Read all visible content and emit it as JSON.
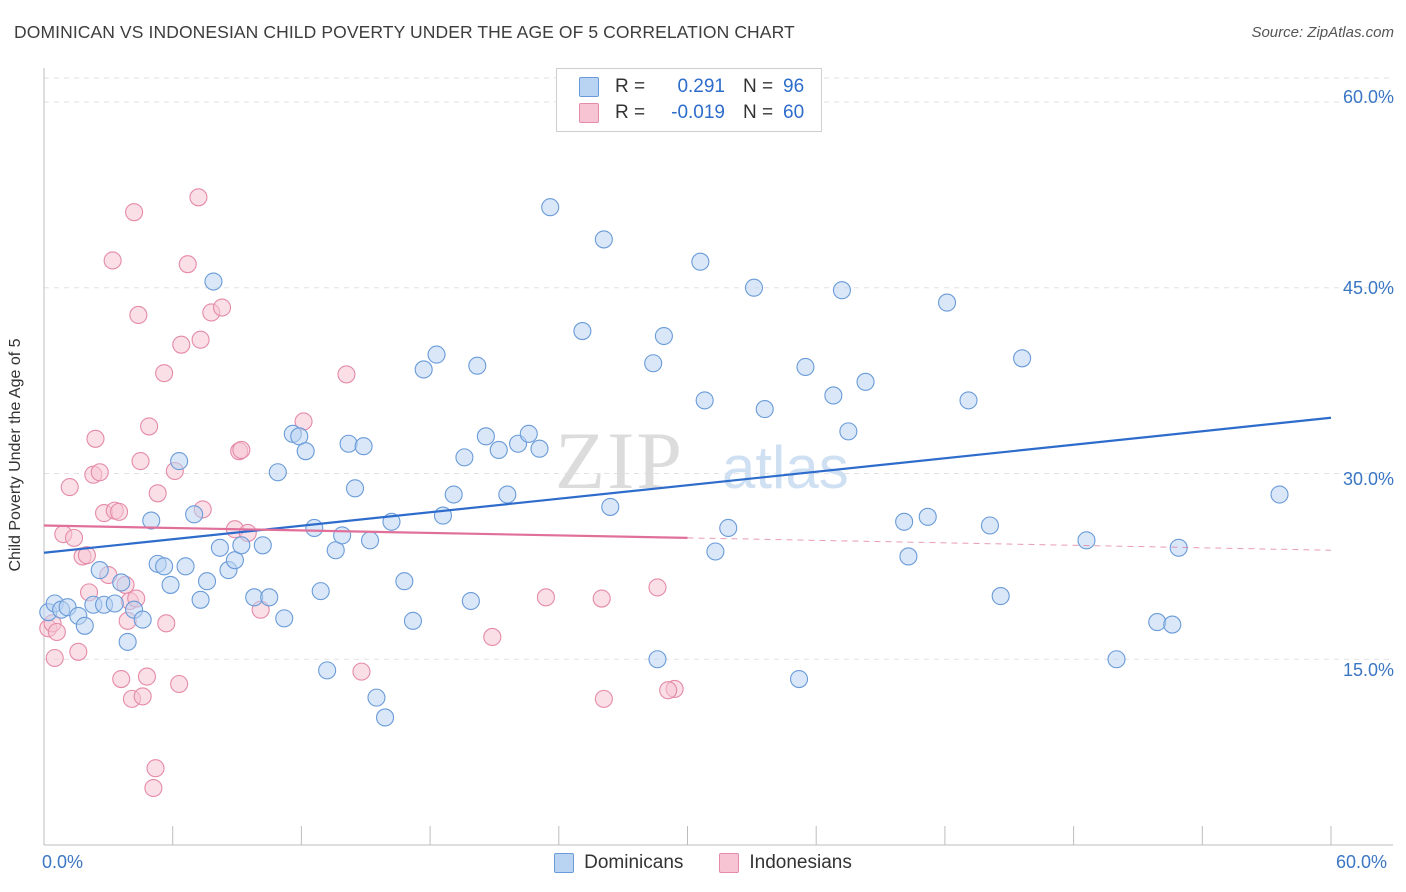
{
  "header": {
    "title": "DOMINICAN VS INDONESIAN CHILD POVERTY UNDER THE AGE OF 5 CORRELATION CHART",
    "source": "Source: ZipAtlas.com"
  },
  "watermark": {
    "zip": "ZIP",
    "atlas": "atlas"
  },
  "colors": {
    "blue_fill": "#b9d3f2",
    "blue_stroke": "#6a9bd8",
    "blue_line": "#2e6ccc",
    "pink_fill": "#f6c4d3",
    "pink_stroke": "#e58aa8",
    "pink_line": "#e0709a",
    "tick_label": "#3a76c4"
  },
  "legend_top": {
    "rows": [
      {
        "r_label": "R =",
        "r_value": "0.291",
        "n_label": "N =",
        "n_value": "96",
        "color": "#b9d3f2"
      },
      {
        "r_label": "R =",
        "r_value": "-0.019",
        "n_label": "N =",
        "n_value": "60",
        "color": "#f6c4d3"
      }
    ]
  },
  "legend_bottom": {
    "items": [
      {
        "label": "Dominicans",
        "color": "#b9d3f2"
      },
      {
        "label": "Indonesians",
        "color": "#f6c4d3"
      }
    ]
  },
  "chart_data": {
    "type": "scatter",
    "title": "DOMINICAN VS INDONESIAN CHILD POVERTY UNDER THE AGE OF 5 CORRELATION CHART",
    "xlabel": "",
    "ylabel": "Child Poverty Under the Age of 5",
    "xlim": [
      0,
      60
    ],
    "ylim": [
      0,
      63
    ],
    "x_tick_labels": [
      "0.0%",
      "60.0%"
    ],
    "y_ticks": [
      15,
      30,
      45,
      60
    ],
    "y_tick_labels": [
      "15.0%",
      "30.0%",
      "45.0%",
      "60.0%"
    ],
    "grid": "horizontal dashed",
    "legend_placement": "top-center and bottom",
    "series": [
      {
        "name": "Dominicans",
        "r": 0.291,
        "n": 96,
        "trend": {
          "x": [
            0,
            60
          ],
          "y": [
            23.6,
            34.5
          ]
        },
        "points": [
          [
            0.2,
            18.8
          ],
          [
            0.5,
            19.5
          ],
          [
            0.8,
            19.0
          ],
          [
            1.1,
            19.2
          ],
          [
            1.6,
            18.5
          ],
          [
            1.9,
            17.7
          ],
          [
            2.3,
            19.4
          ],
          [
            2.6,
            22.2
          ],
          [
            2.8,
            19.4
          ],
          [
            3.3,
            19.5
          ],
          [
            3.6,
            21.2
          ],
          [
            3.9,
            16.4
          ],
          [
            4.2,
            19.0
          ],
          [
            4.6,
            18.2
          ],
          [
            5.0,
            26.2
          ],
          [
            5.3,
            22.7
          ],
          [
            5.6,
            22.5
          ],
          [
            5.9,
            21.0
          ],
          [
            6.3,
            31.0
          ],
          [
            6.6,
            22.5
          ],
          [
            7.0,
            26.7
          ],
          [
            7.3,
            19.8
          ],
          [
            7.6,
            21.3
          ],
          [
            7.9,
            45.5
          ],
          [
            8.2,
            24.0
          ],
          [
            8.6,
            22.2
          ],
          [
            8.9,
            23.0
          ],
          [
            9.2,
            24.2
          ],
          [
            9.8,
            20.0
          ],
          [
            10.2,
            24.2
          ],
          [
            10.5,
            20.0
          ],
          [
            10.9,
            30.1
          ],
          [
            11.2,
            18.3
          ],
          [
            11.6,
            33.2
          ],
          [
            11.9,
            33.0
          ],
          [
            12.2,
            31.8
          ],
          [
            12.6,
            25.6
          ],
          [
            12.9,
            20.5
          ],
          [
            13.2,
            14.1
          ],
          [
            13.6,
            23.8
          ],
          [
            13.9,
            25.0
          ],
          [
            14.2,
            32.4
          ],
          [
            14.5,
            28.8
          ],
          [
            14.9,
            32.2
          ],
          [
            15.2,
            24.6
          ],
          [
            15.5,
            11.9
          ],
          [
            15.9,
            10.3
          ],
          [
            16.2,
            26.1
          ],
          [
            16.8,
            21.3
          ],
          [
            17.2,
            18.1
          ],
          [
            17.7,
            38.4
          ],
          [
            18.3,
            39.6
          ],
          [
            18.6,
            26.6
          ],
          [
            19.1,
            28.3
          ],
          [
            19.6,
            31.3
          ],
          [
            19.9,
            19.7
          ],
          [
            20.2,
            38.7
          ],
          [
            20.6,
            33.0
          ],
          [
            21.2,
            31.9
          ],
          [
            21.6,
            28.3
          ],
          [
            22.1,
            32.4
          ],
          [
            22.6,
            33.2
          ],
          [
            23.1,
            32.0
          ],
          [
            23.6,
            51.5
          ],
          [
            25.1,
            41.5
          ],
          [
            26.1,
            48.9
          ],
          [
            26.4,
            27.3
          ],
          [
            28.4,
            38.9
          ],
          [
            28.6,
            15.0
          ],
          [
            28.9,
            41.1
          ],
          [
            30.6,
            47.1
          ],
          [
            30.8,
            35.9
          ],
          [
            31.3,
            23.7
          ],
          [
            31.9,
            25.6
          ],
          [
            33.1,
            45.0
          ],
          [
            33.6,
            35.2
          ],
          [
            35.2,
            13.4
          ],
          [
            35.5,
            38.6
          ],
          [
            36.8,
            36.3
          ],
          [
            37.2,
            44.8
          ],
          [
            37.5,
            33.4
          ],
          [
            38.3,
            37.4
          ],
          [
            40.1,
            26.1
          ],
          [
            40.3,
            23.3
          ],
          [
            41.2,
            26.5
          ],
          [
            42.1,
            43.8
          ],
          [
            43.1,
            35.9
          ],
          [
            44.1,
            25.8
          ],
          [
            44.6,
            20.1
          ],
          [
            45.6,
            39.3
          ],
          [
            48.6,
            24.6
          ],
          [
            50.0,
            15.0
          ],
          [
            51.9,
            18.0
          ],
          [
            52.6,
            17.8
          ],
          [
            52.9,
            24.0
          ],
          [
            57.6,
            28.3
          ]
        ]
      },
      {
        "name": "Indonesians",
        "r": -0.019,
        "n": 60,
        "trend": {
          "x": [
            0,
            30
          ],
          "y": [
            25.8,
            24.8
          ]
        },
        "trend_extension": {
          "x": [
            30,
            60
          ],
          "y": [
            24.8,
            23.8
          ]
        },
        "points": [
          [
            0.2,
            17.5
          ],
          [
            0.4,
            17.9
          ],
          [
            0.5,
            15.1
          ],
          [
            0.6,
            17.2
          ],
          [
            0.9,
            25.1
          ],
          [
            1.2,
            28.9
          ],
          [
            1.4,
            24.8
          ],
          [
            1.6,
            15.6
          ],
          [
            1.8,
            23.3
          ],
          [
            2.0,
            23.4
          ],
          [
            2.1,
            20.4
          ],
          [
            2.3,
            29.9
          ],
          [
            2.4,
            32.8
          ],
          [
            2.6,
            30.1
          ],
          [
            2.8,
            26.8
          ],
          [
            3.0,
            21.8
          ],
          [
            3.2,
            47.2
          ],
          [
            3.3,
            27.0
          ],
          [
            3.5,
            26.9
          ],
          [
            3.6,
            13.4
          ],
          [
            3.8,
            21.0
          ],
          [
            3.9,
            18.1
          ],
          [
            4.0,
            19.7
          ],
          [
            4.1,
            11.8
          ],
          [
            4.2,
            51.1
          ],
          [
            4.3,
            19.9
          ],
          [
            4.4,
            42.8
          ],
          [
            4.5,
            31.0
          ],
          [
            4.6,
            12.0
          ],
          [
            4.8,
            13.6
          ],
          [
            4.9,
            33.8
          ],
          [
            5.1,
            4.6
          ],
          [
            5.2,
            6.2
          ],
          [
            5.3,
            28.4
          ],
          [
            5.6,
            38.1
          ],
          [
            5.7,
            17.9
          ],
          [
            6.1,
            30.2
          ],
          [
            6.3,
            13.0
          ],
          [
            6.4,
            40.4
          ],
          [
            6.7,
            46.9
          ],
          [
            7.2,
            52.3
          ],
          [
            7.3,
            40.8
          ],
          [
            7.4,
            27.1
          ],
          [
            7.8,
            43.0
          ],
          [
            8.3,
            43.4
          ],
          [
            8.9,
            25.5
          ],
          [
            9.1,
            31.8
          ],
          [
            9.2,
            31.9
          ],
          [
            9.5,
            25.2
          ],
          [
            10.1,
            19.0
          ],
          [
            12.1,
            34.2
          ],
          [
            14.1,
            38.0
          ],
          [
            14.8,
            14.0
          ],
          [
            20.9,
            16.8
          ],
          [
            23.4,
            20.0
          ],
          [
            26.1,
            11.8
          ],
          [
            28.6,
            20.8
          ],
          [
            29.4,
            12.6
          ],
          [
            29.1,
            12.5
          ],
          [
            26.0,
            19.9
          ]
        ]
      }
    ]
  }
}
